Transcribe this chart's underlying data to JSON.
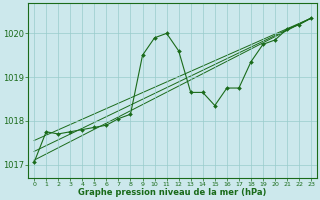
{
  "title": "Graphe pression niveau de la mer (hPa)",
  "bg_color": "#cce8ec",
  "grid_color": "#99cccc",
  "line_color": "#1a6b1a",
  "xlim": [
    -0.5,
    23.5
  ],
  "ylim": [
    1016.7,
    1020.7
  ],
  "yticks": [
    1017,
    1018,
    1019,
    1020
  ],
  "xticks": [
    0,
    1,
    2,
    3,
    4,
    5,
    6,
    7,
    8,
    9,
    10,
    11,
    12,
    13,
    14,
    15,
    16,
    17,
    18,
    19,
    20,
    21,
    22,
    23
  ],
  "main_series": {
    "x": [
      0,
      1,
      2,
      3,
      4,
      5,
      6,
      7,
      8,
      9,
      10,
      11,
      12,
      13,
      14,
      15,
      16,
      17,
      18,
      19,
      20,
      21,
      22,
      23
    ],
    "y": [
      1017.05,
      1017.75,
      1017.7,
      1017.75,
      1017.8,
      1017.85,
      1017.9,
      1018.05,
      1018.15,
      1019.5,
      1019.9,
      1020.0,
      1019.6,
      1018.65,
      1018.65,
      1018.35,
      1018.75,
      1018.75,
      1019.35,
      1019.75,
      1019.85,
      1020.1,
      1020.2,
      1020.35
    ]
  },
  "trend_lines": [
    {
      "x0": 0,
      "y0": 1017.1,
      "x1": 23,
      "y1": 1020.35
    },
    {
      "x0": 0,
      "y0": 1017.3,
      "x1": 23,
      "y1": 1020.35
    },
    {
      "x0": 0,
      "y0": 1017.55,
      "x1": 23,
      "y1": 1020.35
    }
  ]
}
